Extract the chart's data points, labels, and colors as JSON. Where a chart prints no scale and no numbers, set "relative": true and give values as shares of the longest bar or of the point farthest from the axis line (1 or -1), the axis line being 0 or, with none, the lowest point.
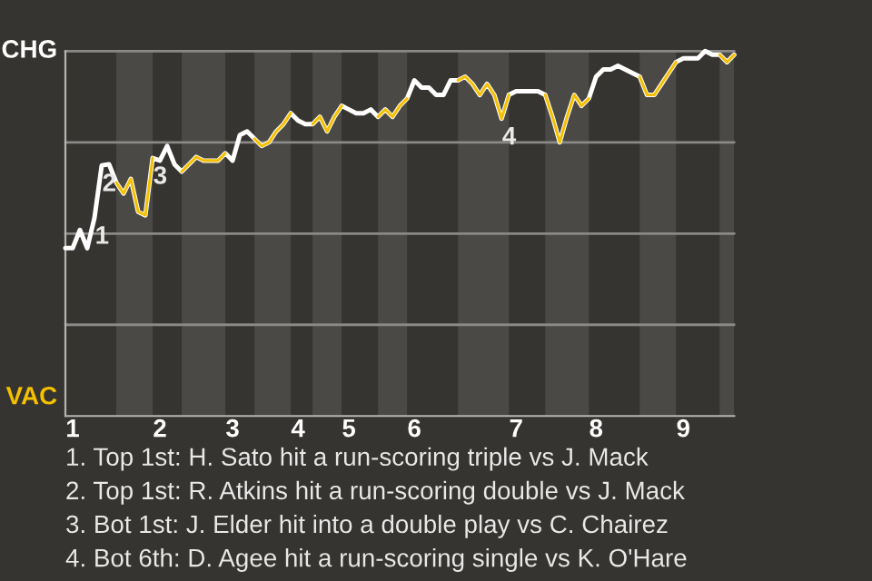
{
  "chart_data": {
    "type": "line",
    "relative": true,
    "categories": [
      null,
      "1",
      null,
      null,
      null,
      null,
      null,
      null,
      null,
      null,
      null,
      null,
      null,
      "2",
      null,
      null,
      null,
      null,
      null,
      null,
      null,
      null,
      null,
      "3",
      null,
      null,
      null,
      null,
      null,
      null,
      null,
      null,
      "4",
      null,
      null,
      null,
      null,
      null,
      null,
      "5",
      null,
      null,
      null,
      null,
      null,
      null,
      null,
      null,
      "6",
      null,
      null,
      null,
      null,
      null,
      null,
      null,
      null,
      null,
      null,
      null,
      null,
      null,
      "7",
      null,
      null,
      null,
      null,
      null,
      null,
      null,
      null,
      null,
      null,
      "8",
      null,
      null,
      null,
      null,
      null,
      null,
      null,
      null,
      null,
      null,
      null,
      "9",
      null,
      null,
      null,
      null,
      null,
      null,
      null
    ],
    "series": [
      {
        "name": "CHG",
        "color": "#ffffff",
        "values": [
          0.46,
          0.46,
          0.51,
          0.46,
          0.543,
          0.687,
          0.69,
          0.64,
          0.61,
          0.65,
          0.56,
          0.55,
          0.707,
          0.7,
          0.74,
          0.69,
          0.67,
          0.69,
          0.71,
          0.7,
          0.7,
          0.7,
          0.72,
          0.7,
          0.77,
          0.78,
          0.76,
          0.74,
          0.75,
          0.78,
          0.8,
          0.83,
          0.81,
          0.8,
          0.8,
          0.82,
          0.78,
          0.82,
          0.85,
          0.84,
          0.83,
          0.83,
          0.84,
          0.82,
          0.84,
          0.82,
          0.85,
          0.87,
          0.92,
          0.9,
          0.9,
          0.88,
          0.88,
          0.92,
          0.92,
          0.93,
          0.91,
          0.88,
          0.91,
          0.88,
          0.815,
          0.88,
          0.89,
          0.89,
          0.89,
          0.89,
          0.88,
          0.82,
          0.75,
          0.82,
          0.88,
          0.85,
          0.87,
          0.93,
          0.95,
          0.95,
          0.96,
          0.95,
          0.94,
          0.93,
          0.88,
          0.88,
          0.91,
          0.94,
          0.97,
          0.98,
          0.98,
          0.98,
          1,
          0.99,
          0.99,
          0.97,
          0.99
        ]
      },
      {
        "name": "VAC",
        "color": "#f5c000",
        "values": [
          null,
          null,
          null,
          null,
          null,
          null,
          null,
          0.64,
          0.61,
          0.65,
          0.56,
          0.55,
          0.707,
          null,
          null,
          null,
          0.67,
          0.69,
          0.71,
          0.7,
          0.7,
          0.7,
          0.72,
          null,
          null,
          null,
          0.76,
          0.74,
          0.75,
          0.78,
          0.8,
          0.83,
          null,
          null,
          0.8,
          0.82,
          0.78,
          0.82,
          0.85,
          null,
          null,
          null,
          null,
          0.82,
          0.84,
          0.82,
          0.85,
          0.87,
          null,
          null,
          null,
          null,
          null,
          null,
          0.92,
          0.93,
          0.91,
          0.88,
          0.91,
          0.88,
          0.815,
          0.88,
          null,
          null,
          null,
          null,
          0.88,
          0.82,
          0.75,
          0.82,
          0.88,
          0.85,
          0.87,
          null,
          null,
          null,
          null,
          null,
          null,
          0.93,
          0.88,
          0.88,
          0.91,
          0.94,
          0.97,
          null,
          null,
          null,
          null,
          null,
          0.99,
          0.97,
          0.99
        ]
      }
    ],
    "grid": "y",
    "annotations": [
      {
        "text": "1",
        "y": 0.543
      },
      {
        "text": "2",
        "y": 0.687
      },
      {
        "text": "3",
        "y": 0.707
      },
      {
        "text": "4",
        "y": 0.815
      },
      "1. Top 1st: H. Sato hit a run-scoring triple vs J. Mack",
      "2. Top 1st: R. Atkins hit a run-scoring double vs J. Mack",
      "3. Bot 1st: J. Elder hit into a double play vs C. Chairez",
      "4. Bot 6th: D. Agee hit a run-scoring single vs K. O'Hare"
    ],
    "marker": "none",
    "line_style": "solid",
    "legend": false
  }
}
